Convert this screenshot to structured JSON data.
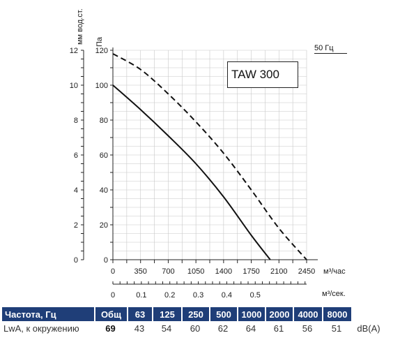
{
  "chart_data": {
    "type": "line",
    "title": "TAW 300",
    "frequency_label": "50 Гц",
    "left_axis_label": "мм вод.ст.",
    "left_axis_ticks": [
      "0",
      "2",
      "4",
      "6",
      "8",
      "10",
      "12"
    ],
    "y_axis_label": "Па",
    "y_ticks": [
      "0",
      "20",
      "40",
      "60",
      "80",
      "100",
      "120"
    ],
    "ylim": [
      0,
      120
    ],
    "x_axis_label": "м³/час",
    "x_ticks": [
      "0",
      "350",
      "700",
      "1050",
      "1400",
      "1750",
      "2100",
      "2450"
    ],
    "xlim": [
      0,
      2450
    ],
    "x2_axis_label": "м³/сек.",
    "x2_ticks": [
      "0",
      "0.1",
      "0.2",
      "0.3",
      "0.4",
      "0.5"
    ],
    "grid": true,
    "series": [
      {
        "style": "solid",
        "points": [
          [
            0,
            100
          ],
          [
            350,
            86
          ],
          [
            700,
            71
          ],
          [
            1050,
            55
          ],
          [
            1400,
            36
          ],
          [
            1750,
            14
          ],
          [
            1990,
            0
          ]
        ]
      },
      {
        "style": "dashed",
        "points": [
          [
            0,
            118
          ],
          [
            350,
            109
          ],
          [
            700,
            95
          ],
          [
            1050,
            79
          ],
          [
            1400,
            61
          ],
          [
            1750,
            40
          ],
          [
            2100,
            18
          ],
          [
            2450,
            0
          ]
        ]
      }
    ]
  },
  "spectrum_table": {
    "header": [
      "Частота, Гц",
      "Общ",
      "63",
      "125",
      "250",
      "500",
      "1000",
      "2000",
      "4000",
      "8000"
    ],
    "row": [
      "LwA, к окружению",
      "69",
      "43",
      "54",
      "60",
      "62",
      "64",
      "61",
      "56",
      "51"
    ],
    "unit": "dB(A)"
  }
}
